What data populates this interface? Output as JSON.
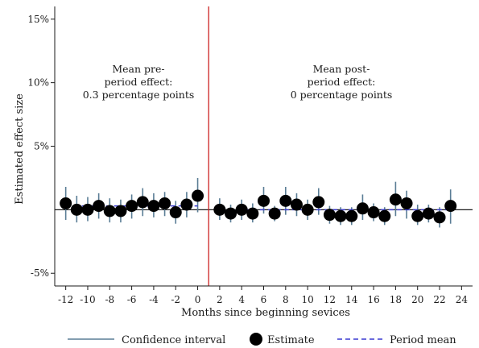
{
  "chart_data": {
    "type": "scatter",
    "xlabel": "Months since beginning sevices",
    "ylabel": "Estimated effect size",
    "xlim": [
      -13,
      25
    ],
    "ylim": [
      -6,
      16
    ],
    "xticks": [
      -12,
      -10,
      -8,
      -6,
      -4,
      -2,
      0,
      2,
      4,
      6,
      8,
      10,
      12,
      14,
      16,
      18,
      20,
      22,
      24
    ],
    "yticks": [
      {
        "value": 15,
        "label": "15%"
      },
      {
        "value": 10,
        "label": "10%"
      },
      {
        "value": 5,
        "label": "5%"
      },
      {
        "value": -5,
        "label": "-5%"
      }
    ],
    "vertical_line": {
      "x": 1,
      "color": "#cc2222"
    },
    "zero_line": {
      "y": 0,
      "color": "#1a1a1a"
    },
    "points": [
      {
        "x": -12,
        "y": 0.5,
        "lo": -0.8,
        "hi": 1.8
      },
      {
        "x": -11,
        "y": 0.0,
        "lo": -1.0,
        "hi": 1.1
      },
      {
        "x": -10,
        "y": 0.0,
        "lo": -0.9,
        "hi": 1.0
      },
      {
        "x": -9,
        "y": 0.3,
        "lo": -0.7,
        "hi": 1.3
      },
      {
        "x": -8,
        "y": -0.1,
        "lo": -1.0,
        "hi": 0.9
      },
      {
        "x": -7,
        "y": -0.1,
        "lo": -1.0,
        "hi": 0.8
      },
      {
        "x": -6,
        "y": 0.3,
        "lo": -0.7,
        "hi": 1.2
      },
      {
        "x": -5,
        "y": 0.6,
        "lo": -0.5,
        "hi": 1.7
      },
      {
        "x": -4,
        "y": 0.3,
        "lo": -0.6,
        "hi": 1.3
      },
      {
        "x": -3,
        "y": 0.5,
        "lo": -0.5,
        "hi": 1.4
      },
      {
        "x": -2,
        "y": -0.2,
        "lo": -1.1,
        "hi": 0.7
      },
      {
        "x": -1,
        "y": 0.4,
        "lo": -0.6,
        "hi": 1.4
      },
      {
        "x": 0,
        "y": 1.1,
        "lo": -0.2,
        "hi": 2.5
      },
      {
        "x": 2,
        "y": 0.0,
        "lo": -0.8,
        "hi": 0.9
      },
      {
        "x": 3,
        "y": -0.3,
        "lo": -1.0,
        "hi": 0.4
      },
      {
        "x": 4,
        "y": 0.0,
        "lo": -0.8,
        "hi": 0.8
      },
      {
        "x": 5,
        "y": -0.3,
        "lo": -1.0,
        "hi": 0.5
      },
      {
        "x": 6,
        "y": 0.7,
        "lo": -0.3,
        "hi": 1.8
      },
      {
        "x": 7,
        "y": -0.3,
        "lo": -0.9,
        "hi": 0.3
      },
      {
        "x": 8,
        "y": 0.7,
        "lo": -0.4,
        "hi": 1.8
      },
      {
        "x": 9,
        "y": 0.4,
        "lo": -0.5,
        "hi": 1.3
      },
      {
        "x": 10,
        "y": 0.0,
        "lo": -0.8,
        "hi": 0.8
      },
      {
        "x": 11,
        "y": 0.6,
        "lo": -0.4,
        "hi": 1.7
      },
      {
        "x": 12,
        "y": -0.4,
        "lo": -1.1,
        "hi": 0.3
      },
      {
        "x": 13,
        "y": -0.5,
        "lo": -1.2,
        "hi": 0.2
      },
      {
        "x": 14,
        "y": -0.5,
        "lo": -1.2,
        "hi": 0.2
      },
      {
        "x": 15,
        "y": 0.1,
        "lo": -0.8,
        "hi": 1.2
      },
      {
        "x": 16,
        "y": -0.2,
        "lo": -0.9,
        "hi": 0.5
      },
      {
        "x": 17,
        "y": -0.5,
        "lo": -1.2,
        "hi": 0.2
      },
      {
        "x": 18,
        "y": 0.8,
        "lo": -0.5,
        "hi": 2.2
      },
      {
        "x": 19,
        "y": 0.5,
        "lo": -0.7,
        "hi": 1.5
      },
      {
        "x": 20,
        "y": -0.5,
        "lo": -1.2,
        "hi": 0.4
      },
      {
        "x": 21,
        "y": -0.3,
        "lo": -1.0,
        "hi": 0.4
      },
      {
        "x": 22,
        "y": -0.6,
        "lo": -1.4,
        "hi": 0.2
      },
      {
        "x": 23,
        "y": 0.3,
        "lo": -1.1,
        "hi": 1.6
      }
    ],
    "period_means": [
      {
        "x_from": -12,
        "x_to": 0,
        "y": 0.3
      },
      {
        "x_from": 2,
        "x_to": 23,
        "y": 0.0
      }
    ],
    "annotations": {
      "pre": [
        "Mean pre-",
        "period effect:",
        "0.3 percentage points"
      ],
      "post": [
        "Mean post-",
        "period effect:",
        "0 percentage points"
      ]
    },
    "legend": {
      "placement": "bottom",
      "items": [
        {
          "kind": "line",
          "label": "Confidence interval"
        },
        {
          "kind": "marker",
          "label": "Estimate"
        },
        {
          "kind": "dashed",
          "label": "Period mean"
        }
      ]
    },
    "colors": {
      "ci": "#5a7d95",
      "marker": "#000000",
      "mean": "#3a3ad0",
      "axis": "#1a1a1a"
    }
  }
}
